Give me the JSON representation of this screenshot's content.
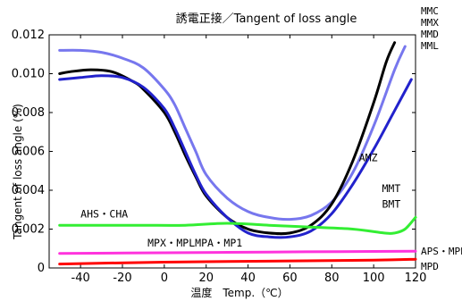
{
  "chart_data": {
    "type": "line",
    "title": "誘電正接／Tangent of loss angle",
    "xlabel": "温度　Temp.（℃）",
    "ylabel": "Tangent of loss angle (%)",
    "xlim": [
      -55,
      120
    ],
    "ylim": [
      0,
      0.012
    ],
    "x_ticks": [
      -40,
      -20,
      0,
      20,
      40,
      60,
      80,
      100,
      120
    ],
    "y_ticks": [
      "0",
      "0.002",
      "0.004",
      "0.006",
      "0.008",
      "0.010",
      "0.012"
    ],
    "grid": false,
    "series": [
      {
        "name": "MMC・MMX・MMD・MML",
        "color": "#7777ee",
        "points": [
          [
            -50,
            0.0112
          ],
          [
            -40,
            0.0112
          ],
          [
            -30,
            0.0111
          ],
          [
            -20,
            0.0108
          ],
          [
            -10,
            0.0103
          ],
          [
            0,
            0.0092
          ],
          [
            5,
            0.0084
          ],
          [
            10,
            0.0072
          ],
          [
            15,
            0.006
          ],
          [
            20,
            0.0048
          ],
          [
            30,
            0.0036
          ],
          [
            40,
            0.0029
          ],
          [
            50,
            0.0026
          ],
          [
            60,
            0.0025
          ],
          [
            70,
            0.0027
          ],
          [
            80,
            0.0034
          ],
          [
            90,
            0.0049
          ],
          [
            100,
            0.0073
          ],
          [
            110,
            0.0102
          ],
          [
            115,
            0.0114
          ]
        ]
      },
      {
        "name": "AMZ",
        "color": "#000000",
        "points": [
          [
            -50,
            0.01
          ],
          [
            -45,
            0.0101
          ],
          [
            -35,
            0.0102
          ],
          [
            -25,
            0.0101
          ],
          [
            -15,
            0.0096
          ],
          [
            -10,
            0.0092
          ],
          [
            0,
            0.008
          ],
          [
            5,
            0.007
          ],
          [
            10,
            0.0058
          ],
          [
            15,
            0.0047
          ],
          [
            20,
            0.0037
          ],
          [
            30,
            0.0026
          ],
          [
            40,
            0.002
          ],
          [
            50,
            0.0018
          ],
          [
            60,
            0.0018
          ],
          [
            70,
            0.0022
          ],
          [
            80,
            0.0033
          ],
          [
            90,
            0.0055
          ],
          [
            100,
            0.0085
          ],
          [
            106,
            0.0106
          ],
          [
            110,
            0.0116
          ]
        ]
      },
      {
        "name": "MMT・BMT",
        "color": "#2222cc",
        "points": [
          [
            -50,
            0.0097
          ],
          [
            -40,
            0.0098
          ],
          [
            -30,
            0.0099
          ],
          [
            -20,
            0.0098
          ],
          [
            -10,
            0.0093
          ],
          [
            0,
            0.0082
          ],
          [
            5,
            0.0072
          ],
          [
            10,
            0.006
          ],
          [
            15,
            0.0048
          ],
          [
            20,
            0.0038
          ],
          [
            30,
            0.0026
          ],
          [
            40,
            0.0018
          ],
          [
            50,
            0.0016
          ],
          [
            60,
            0.0016
          ],
          [
            70,
            0.0019
          ],
          [
            80,
            0.0028
          ],
          [
            90,
            0.0043
          ],
          [
            100,
            0.0061
          ],
          [
            110,
            0.0081
          ],
          [
            118,
            0.0097
          ]
        ]
      },
      {
        "name": "AHS・CHA",
        "color": "#33ee33",
        "points": [
          [
            -50,
            0.0022
          ],
          [
            -30,
            0.0022
          ],
          [
            -10,
            0.0022
          ],
          [
            10,
            0.0022
          ],
          [
            30,
            0.0023
          ],
          [
            50,
            0.0022
          ],
          [
            70,
            0.0021
          ],
          [
            90,
            0.002
          ],
          [
            105,
            0.0018
          ],
          [
            110,
            0.0018
          ],
          [
            115,
            0.002
          ],
          [
            120,
            0.0026
          ]
        ]
      },
      {
        "name": "MPX・MPLMPA・MP1",
        "color": "#ff33dd",
        "points": [
          [
            -50,
            0.00075
          ],
          [
            0,
            0.00078
          ],
          [
            50,
            0.00082
          ],
          [
            100,
            0.00085
          ],
          [
            120,
            0.00086
          ]
        ]
      },
      {
        "name": "APS・MPE",
        "color": "#ff0000",
        "points": [
          [
            -50,
            0.0002
          ],
          [
            0,
            0.0003
          ],
          [
            50,
            0.00035
          ],
          [
            100,
            0.0004
          ],
          [
            120,
            0.00045
          ]
        ]
      }
    ],
    "annotations": [
      {
        "text": "AMZ",
        "x": 93,
        "y": 0.0055
      },
      {
        "text": "MMT",
        "x": 104,
        "y": 0.0039
      },
      {
        "text": "BMT",
        "x": 104,
        "y": 0.0031
      },
      {
        "text": "AHS・CHA",
        "x": -40,
        "y": 0.0026
      },
      {
        "text": "MPX・MPLMPA・MP1",
        "x": -8,
        "y": 0.0011
      }
    ],
    "side_labels": {
      "top": [
        "MMC",
        "MMX",
        "MMD",
        "MML"
      ],
      "bottom": [
        "APS・MPE",
        "MPD"
      ]
    }
  }
}
